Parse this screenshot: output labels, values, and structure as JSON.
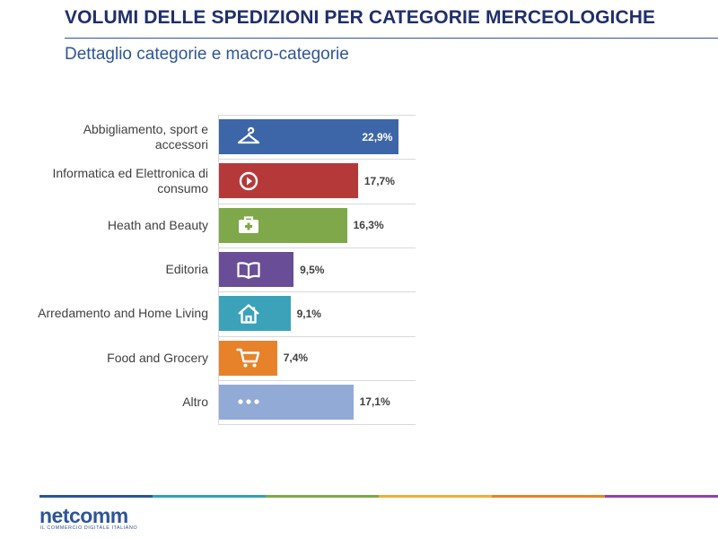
{
  "header": {
    "title": "VOLUMI DELLE SPEDIZIONI PER CATEGORIE MERCEOLOGICHE",
    "subtitle": "Dettaglio categorie e macro-categorie"
  },
  "chart_data": {
    "type": "bar",
    "orientation": "horizontal",
    "categories": [
      "Abbigliamento, sport e accessori",
      "Informatica ed Elettronica di consumo",
      "Heath and Beauty",
      "Editoria",
      "Arredamento and Home Living",
      "Food and Grocery",
      "Altro"
    ],
    "values": [
      22.9,
      17.7,
      16.3,
      9.5,
      9.1,
      7.4,
      17.1
    ],
    "value_labels": [
      "22,9%",
      "17,7%",
      "16,3%",
      "9,5%",
      "9,1%",
      "7,4%",
      "17,1%"
    ],
    "colors": [
      "#3c66a8",
      "#b6393a",
      "#7ea84a",
      "#6a4d97",
      "#3ba2ba",
      "#e8822a",
      "#92aad6"
    ],
    "icons": [
      "hanger-icon",
      "play-circle-icon",
      "first-aid-kit-icon",
      "open-book-icon",
      "house-icon",
      "shopping-cart-icon",
      "ellipsis-icon"
    ],
    "grid": false,
    "legend": "none"
  },
  "footer": {
    "logo": "netcomm",
    "tagline": "IL COMMERCIO DIGITALE ITALIANO",
    "stripe_colors": [
      "#2e5597",
      "#3a9fb5",
      "#7ea84a",
      "#e8b13a",
      "#e8822a",
      "#8e44ad"
    ]
  }
}
